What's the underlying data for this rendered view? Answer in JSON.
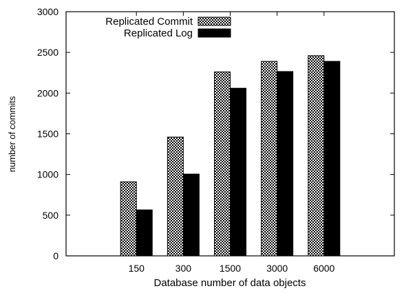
{
  "chart_data": {
    "type": "bar",
    "categories": [
      "150",
      "300",
      "1500",
      "3000",
      "6000"
    ],
    "series": [
      {
        "name": "Replicated Commit",
        "values": [
          910,
          1460,
          2260,
          2390,
          2460
        ],
        "pattern": "checker"
      },
      {
        "name": "Replicated Log",
        "values": [
          565,
          1005,
          2060,
          2265,
          2390
        ],
        "pattern": "solid"
      }
    ],
    "xlabel": "Database number of data objects",
    "ylabel": "number of commits",
    "ylim": [
      0,
      3000
    ],
    "yticks": [
      "0",
      "500",
      "1000",
      "1500",
      "2000",
      "2500",
      "3000"
    ],
    "grid": false,
    "legend_position": "top-left",
    "colors": {
      "solid": "#000000",
      "checker_dark": "#000000",
      "checker_light": "#ffffff"
    }
  }
}
